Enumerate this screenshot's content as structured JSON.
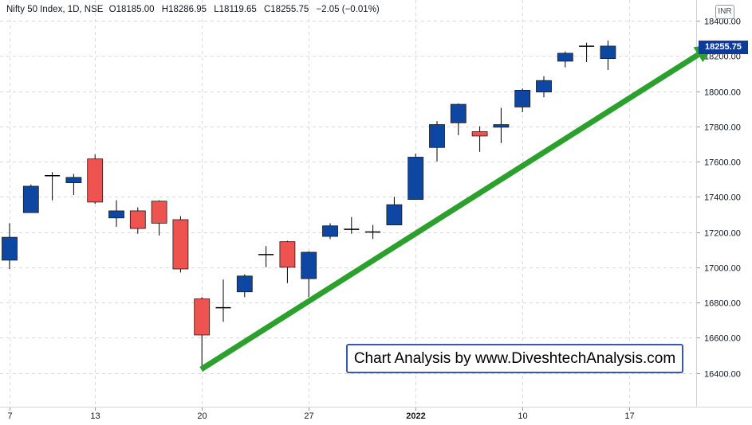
{
  "title_bar": {
    "symbol": "Nifty 50 Index, 1D, NSE",
    "open": "O18185.00",
    "high": "H18286.95",
    "low": "L18119.65",
    "close": "C18255.75",
    "change": "−2.05 (−0.01%)"
  },
  "currency": "INR",
  "last_price": "18255.75",
  "watermark": "Chart Analysis by www.DiveshtechAnalysis.com",
  "colors": {
    "up": "#0d47a1",
    "down": "#ef5350",
    "arrow": "#2ca02c",
    "price_badge": "#0d3b99"
  },
  "chart_data": {
    "type": "candlestick",
    "title": "Nifty 50 Index, 1D, NSE",
    "ylim": [
      16310,
      18440
    ],
    "y_ticks": [
      16400,
      16600,
      16800,
      17000,
      17200,
      17400,
      17600,
      17800,
      18000,
      18200,
      18400
    ],
    "y_tick_labels": [
      "16400.00",
      "16600.00",
      "16800.00",
      "17000.00",
      "17200.00",
      "17400.00",
      "17600.00",
      "17800.00",
      "18000.00",
      "18200.00",
      "18400.00"
    ],
    "x_ticks": [
      {
        "label": "7",
        "index": 0
      },
      {
        "label": "13",
        "index": 4
      },
      {
        "label": "20",
        "index": 9
      },
      {
        "label": "27",
        "index": 14
      },
      {
        "label": "2022",
        "index": 19
      },
      {
        "label": "10",
        "index": 24
      },
      {
        "label": "17",
        "index": 29
      }
    ],
    "grid": true,
    "candles": [
      {
        "date": "Dec 7",
        "o": 17040,
        "h": 17250,
        "l": 16990,
        "c": 17170
      },
      {
        "date": "Dec 8",
        "o": 17310,
        "h": 17470,
        "l": 17310,
        "c": 17460
      },
      {
        "date": "Dec 9",
        "o": 17520,
        "h": 17540,
        "l": 17380,
        "c": 17515
      },
      {
        "date": "Dec 10",
        "o": 17480,
        "h": 17530,
        "l": 17410,
        "c": 17510
      },
      {
        "date": "Dec 13",
        "o": 17615,
        "h": 17640,
        "l": 17360,
        "c": 17370
      },
      {
        "date": "Dec 14",
        "o": 17280,
        "h": 17380,
        "l": 17230,
        "c": 17320
      },
      {
        "date": "Dec 15",
        "o": 17320,
        "h": 17340,
        "l": 17190,
        "c": 17220
      },
      {
        "date": "Dec 16",
        "o": 17375,
        "h": 17380,
        "l": 17180,
        "c": 17250
      },
      {
        "date": "Dec 17",
        "o": 17270,
        "h": 17290,
        "l": 16970,
        "c": 16990
      },
      {
        "date": "Dec 20",
        "o": 16820,
        "h": 16830,
        "l": 16420,
        "c": 16615
      },
      {
        "date": "Dec 21",
        "o": 16765,
        "h": 16930,
        "l": 16690,
        "c": 16770
      },
      {
        "date": "Dec 22",
        "o": 16860,
        "h": 16960,
        "l": 16830,
        "c": 16950
      },
      {
        "date": "Dec 23",
        "o": 17070,
        "h": 17120,
        "l": 17000,
        "c": 17072
      },
      {
        "date": "Dec 24",
        "o": 17145,
        "h": 17150,
        "l": 16910,
        "c": 17000
      },
      {
        "date": "Dec 27",
        "o": 16935,
        "h": 17090,
        "l": 16830,
        "c": 17085
      },
      {
        "date": "Dec 28",
        "o": 17175,
        "h": 17250,
        "l": 17160,
        "c": 17235
      },
      {
        "date": "Dec 29",
        "o": 17215,
        "h": 17285,
        "l": 17190,
        "c": 17215
      },
      {
        "date": "Dec 30",
        "o": 17200,
        "h": 17240,
        "l": 17160,
        "c": 17200
      },
      {
        "date": "Dec 31",
        "o": 17240,
        "h": 17400,
        "l": 17240,
        "c": 17355
      },
      {
        "date": "Jan 3",
        "o": 17385,
        "h": 17645,
        "l": 17385,
        "c": 17625
      },
      {
        "date": "Jan 4",
        "o": 17680,
        "h": 17830,
        "l": 17600,
        "c": 17810
      },
      {
        "date": "Jan 5",
        "o": 17820,
        "h": 17930,
        "l": 17750,
        "c": 17925
      },
      {
        "date": "Jan 6",
        "o": 17770,
        "h": 17800,
        "l": 17655,
        "c": 17745
      },
      {
        "date": "Jan 7",
        "o": 17795,
        "h": 17905,
        "l": 17705,
        "c": 17810
      },
      {
        "date": "Jan 10",
        "o": 17910,
        "h": 18015,
        "l": 17880,
        "c": 18005
      },
      {
        "date": "Jan 11",
        "o": 17995,
        "h": 18085,
        "l": 17965,
        "c": 18060
      },
      {
        "date": "Jan 12",
        "o": 18170,
        "h": 18225,
        "l": 18135,
        "c": 18215
      },
      {
        "date": "Jan 13",
        "o": 18255,
        "h": 18275,
        "l": 18165,
        "c": 18255
      },
      {
        "date": "Jan 14",
        "o": 18185,
        "h": 18286.95,
        "l": 18119.65,
        "c": 18255.75
      }
    ],
    "trend_arrow": {
      "from": {
        "index": 9,
        "price": 16420
      },
      "to": {
        "index": 33,
        "price": 18270
      }
    }
  }
}
